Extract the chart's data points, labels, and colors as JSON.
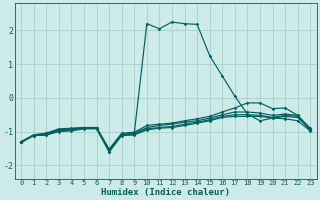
{
  "xlabel": "Humidex (Indice chaleur)",
  "ylabel": "",
  "bg_color": "#cceae7",
  "grid_color": "#aad4d0",
  "line_color": "#006060",
  "xlim": [
    -0.5,
    23.5
  ],
  "ylim": [
    -2.4,
    2.8
  ],
  "yticks": [
    -2,
    -1,
    0,
    1,
    2
  ],
  "xticks": [
    0,
    1,
    2,
    3,
    4,
    5,
    6,
    7,
    8,
    9,
    10,
    11,
    12,
    13,
    14,
    15,
    16,
    17,
    18,
    19,
    20,
    21,
    22,
    23
  ],
  "series": [
    {
      "x": [
        0,
        1,
        2,
        3,
        4,
        5,
        6,
        7,
        8,
        9,
        10,
        11,
        12,
        13,
        14,
        15,
        16,
        17,
        18,
        19,
        20,
        21,
        22,
        23
      ],
      "y": [
        -1.3,
        -1.1,
        -1.05,
        -0.95,
        -0.92,
        -0.9,
        -0.88,
        -1.55,
        -1.1,
        -1.05,
        2.2,
        2.05,
        2.25,
        2.2,
        2.18,
        1.25,
        0.65,
        0.05,
        -0.48,
        -0.68,
        -0.6,
        -0.62,
        -0.68,
        -0.98
      ]
    },
    {
      "x": [
        0,
        1,
        2,
        3,
        4,
        5,
        6,
        7,
        8,
        9,
        10,
        11,
        12,
        13,
        14,
        15,
        16,
        17,
        18,
        19,
        20,
        21,
        22,
        23
      ],
      "y": [
        -1.3,
        -1.1,
        -1.05,
        -0.92,
        -0.9,
        -0.88,
        -0.88,
        -1.52,
        -1.05,
        -1.02,
        -0.82,
        -0.78,
        -0.75,
        -0.68,
        -0.62,
        -0.55,
        -0.42,
        -0.3,
        -0.15,
        -0.15,
        -0.32,
        -0.3,
        -0.52,
        -0.95
      ]
    },
    {
      "x": [
        0,
        1,
        2,
        3,
        4,
        5,
        6,
        7,
        8,
        9,
        10,
        11,
        12,
        13,
        14,
        15,
        16,
        17,
        18,
        19,
        20,
        21,
        22,
        23
      ],
      "y": [
        -1.32,
        -1.1,
        -1.08,
        -0.95,
        -0.92,
        -0.88,
        -0.9,
        -1.55,
        -1.08,
        -1.05,
        -0.88,
        -0.82,
        -0.78,
        -0.72,
        -0.68,
        -0.6,
        -0.5,
        -0.42,
        -0.42,
        -0.45,
        -0.52,
        -0.48,
        -0.52,
        -0.9
      ]
    },
    {
      "x": [
        0,
        1,
        2,
        3,
        4,
        5,
        6,
        7,
        8,
        9,
        10,
        11,
        12,
        13,
        14,
        15,
        16,
        17,
        18,
        19,
        20,
        21,
        22,
        23
      ],
      "y": [
        -1.32,
        -1.12,
        -1.1,
        -0.98,
        -0.95,
        -0.9,
        -0.9,
        -1.6,
        -1.1,
        -1.08,
        -0.92,
        -0.88,
        -0.85,
        -0.78,
        -0.72,
        -0.65,
        -0.55,
        -0.5,
        -0.5,
        -0.52,
        -0.58,
        -0.52,
        -0.55,
        -0.92
      ]
    },
    {
      "x": [
        0,
        1,
        2,
        3,
        4,
        5,
        6,
        7,
        8,
        9,
        10,
        11,
        12,
        13,
        14,
        15,
        16,
        17,
        18,
        19,
        20,
        21,
        22,
        23
      ],
      "y": [
        -1.32,
        -1.12,
        -1.1,
        -1.0,
        -0.98,
        -0.92,
        -0.92,
        -1.6,
        -1.12,
        -1.1,
        -0.95,
        -0.9,
        -0.88,
        -0.82,
        -0.75,
        -0.68,
        -0.58,
        -0.55,
        -0.55,
        -0.55,
        -0.6,
        -0.55,
        -0.58,
        -0.95
      ]
    }
  ]
}
